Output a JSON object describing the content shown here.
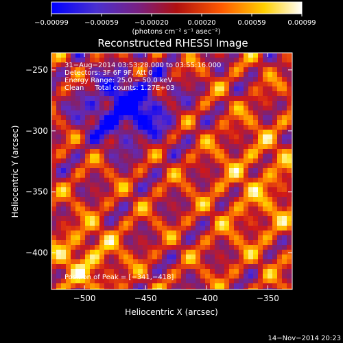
{
  "chart_data": {
    "type": "heatmap",
    "title": "Reconstructed RHESSI Image",
    "xlabel": "Heliocentric X (arcsec)",
    "ylabel": "Heliocentric Y (arcsec)",
    "xlim": [
      -527,
      -330
    ],
    "ylim": [
      -430,
      -236
    ],
    "x_ticks": [
      {
        "v": -500,
        "label": "−500"
      },
      {
        "v": -450,
        "label": "−450"
      },
      {
        "v": -400,
        "label": "−400"
      },
      {
        "v": -350,
        "label": "−350"
      }
    ],
    "y_ticks": [
      {
        "v": -250,
        "label": "−250"
      },
      {
        "v": -300,
        "label": "−300"
      },
      {
        "v": -350,
        "label": "−350"
      },
      {
        "v": -400,
        "label": "−400"
      }
    ],
    "colorbar": {
      "min": -0.00099,
      "max": 0.00099,
      "ticks": [
        "−0.00099",
        "−0.00059",
        "−0.00020",
        "0.00020",
        "0.00059",
        "0.00099"
      ],
      "unit_label": "(photons cm⁻² s⁻¹ asec⁻²)",
      "colormap": [
        "#0000ff",
        "#5a2cc8",
        "#802070",
        "#d01818",
        "#ff7a00",
        "#ffe000",
        "#ffffff"
      ]
    },
    "annotations": [
      "31−Aug−2014 03:53:28.000 to 03:55:16.000",
      "Detectors: 3F 6F 9F, Att 0",
      "Energy Range: 25.0 − 50.0 keV",
      "Clean     Total counts: 1.27E+03"
    ],
    "peak_label": "Position of Peak = [−341,−418]",
    "peak": [
      -341,
      -418
    ],
    "footer_date": "14−Nov−2014 20:23"
  }
}
